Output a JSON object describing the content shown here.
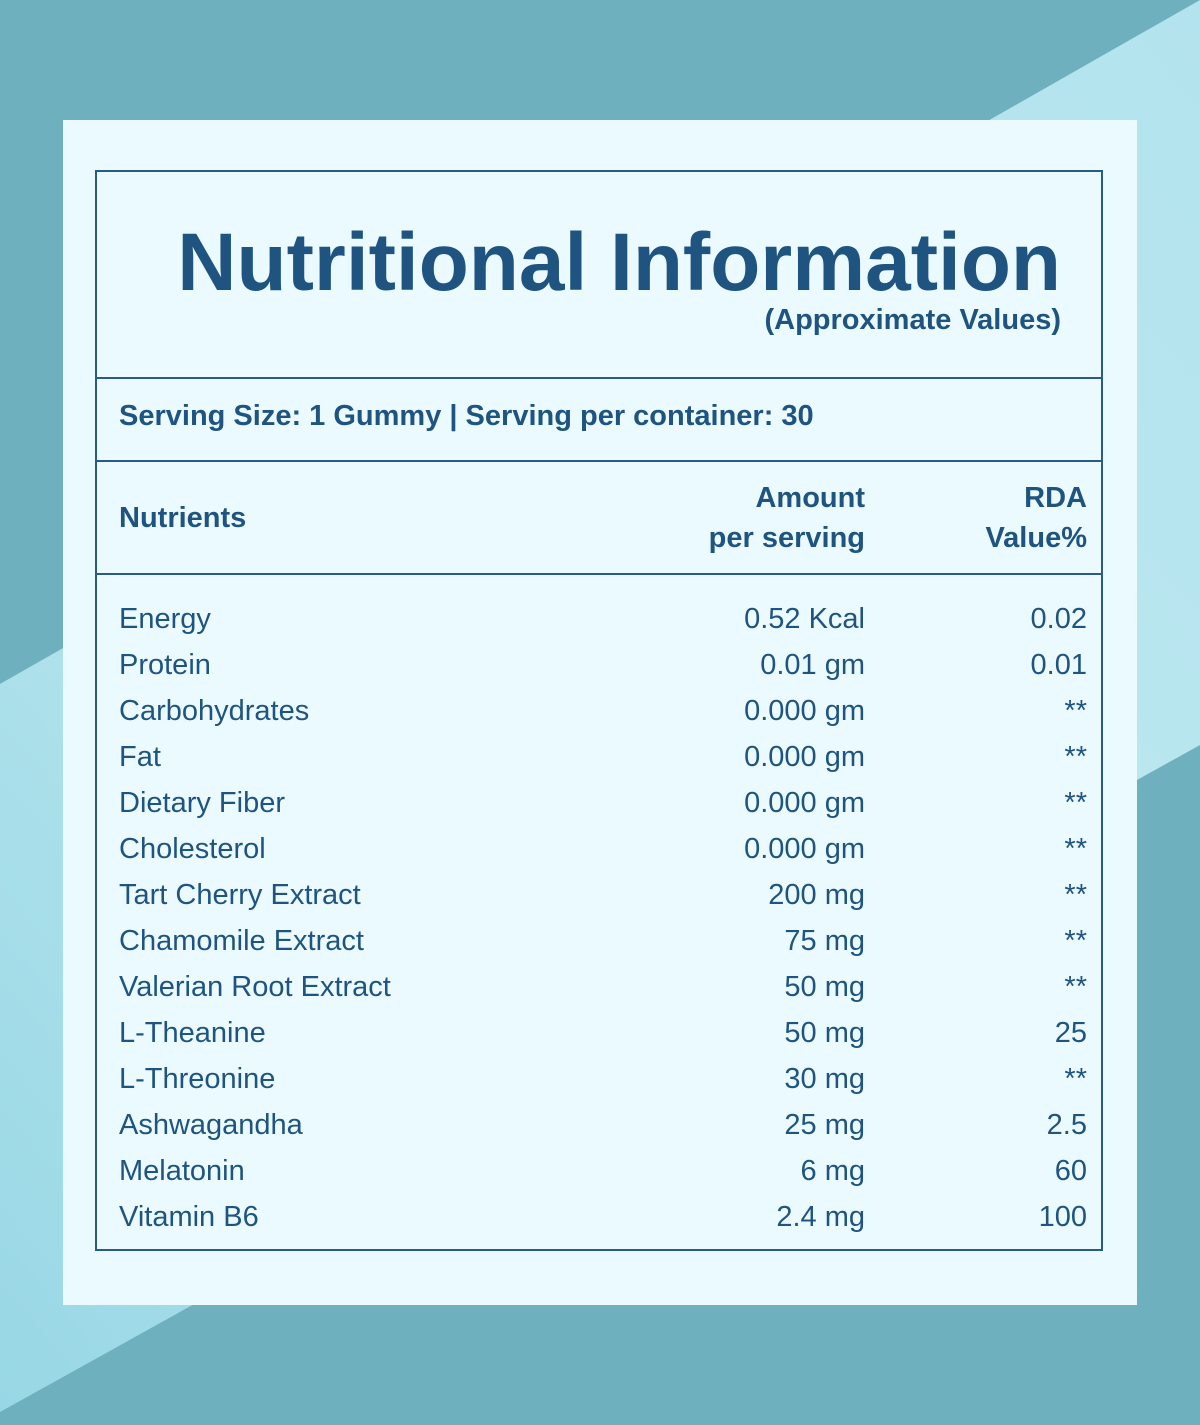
{
  "title": "Nutritional Information",
  "subtitle": "(Approximate Values)",
  "serving": "Serving Size: 1 Gummy | Serving per container: 30",
  "headers": {
    "nutrients": "Nutrients",
    "amount_1": "Amount",
    "amount_2": "per serving",
    "rda_1": "RDA",
    "rda_2": "Value%"
  },
  "rows": [
    {
      "name": "Energy",
      "amount": "0.52 Kcal",
      "rda": "0.02"
    },
    {
      "name": "Protein",
      "amount": "0.01 gm",
      "rda": "0.01"
    },
    {
      "name": "Carbohydrates",
      "amount": "0.000 gm",
      "rda": "**"
    },
    {
      "name": "Fat",
      "amount": "0.000 gm",
      "rda": "**"
    },
    {
      "name": "Dietary Fiber",
      "amount": "0.000 gm",
      "rda": "**"
    },
    {
      "name": "Cholesterol",
      "amount": "0.000 gm",
      "rda": "**"
    },
    {
      "name": "Tart Cherry Extract",
      "amount": "200 mg",
      "rda": "**"
    },
    {
      "name": "Chamomile Extract",
      "amount": "75 mg",
      "rda": "**"
    },
    {
      "name": "Valerian Root Extract",
      "amount": "50 mg",
      "rda": "**"
    },
    {
      "name": "L-Theanine",
      "amount": "50 mg",
      "rda": "25"
    },
    {
      "name": "L-Threonine",
      "amount": "30 mg",
      "rda": "**"
    },
    {
      "name": "Ashwagandha",
      "amount": "25 mg",
      "rda": "2.5"
    },
    {
      "name": "Melatonin",
      "amount": "6 mg",
      "rda": "60"
    },
    {
      "name": "Vitamin B6",
      "amount": "2.4 mg",
      "rda": "100"
    }
  ],
  "colors": {
    "text": "#1f5480",
    "background": "#6fb0bf",
    "card": "#ebfaff",
    "band": "#b9e6ef"
  }
}
